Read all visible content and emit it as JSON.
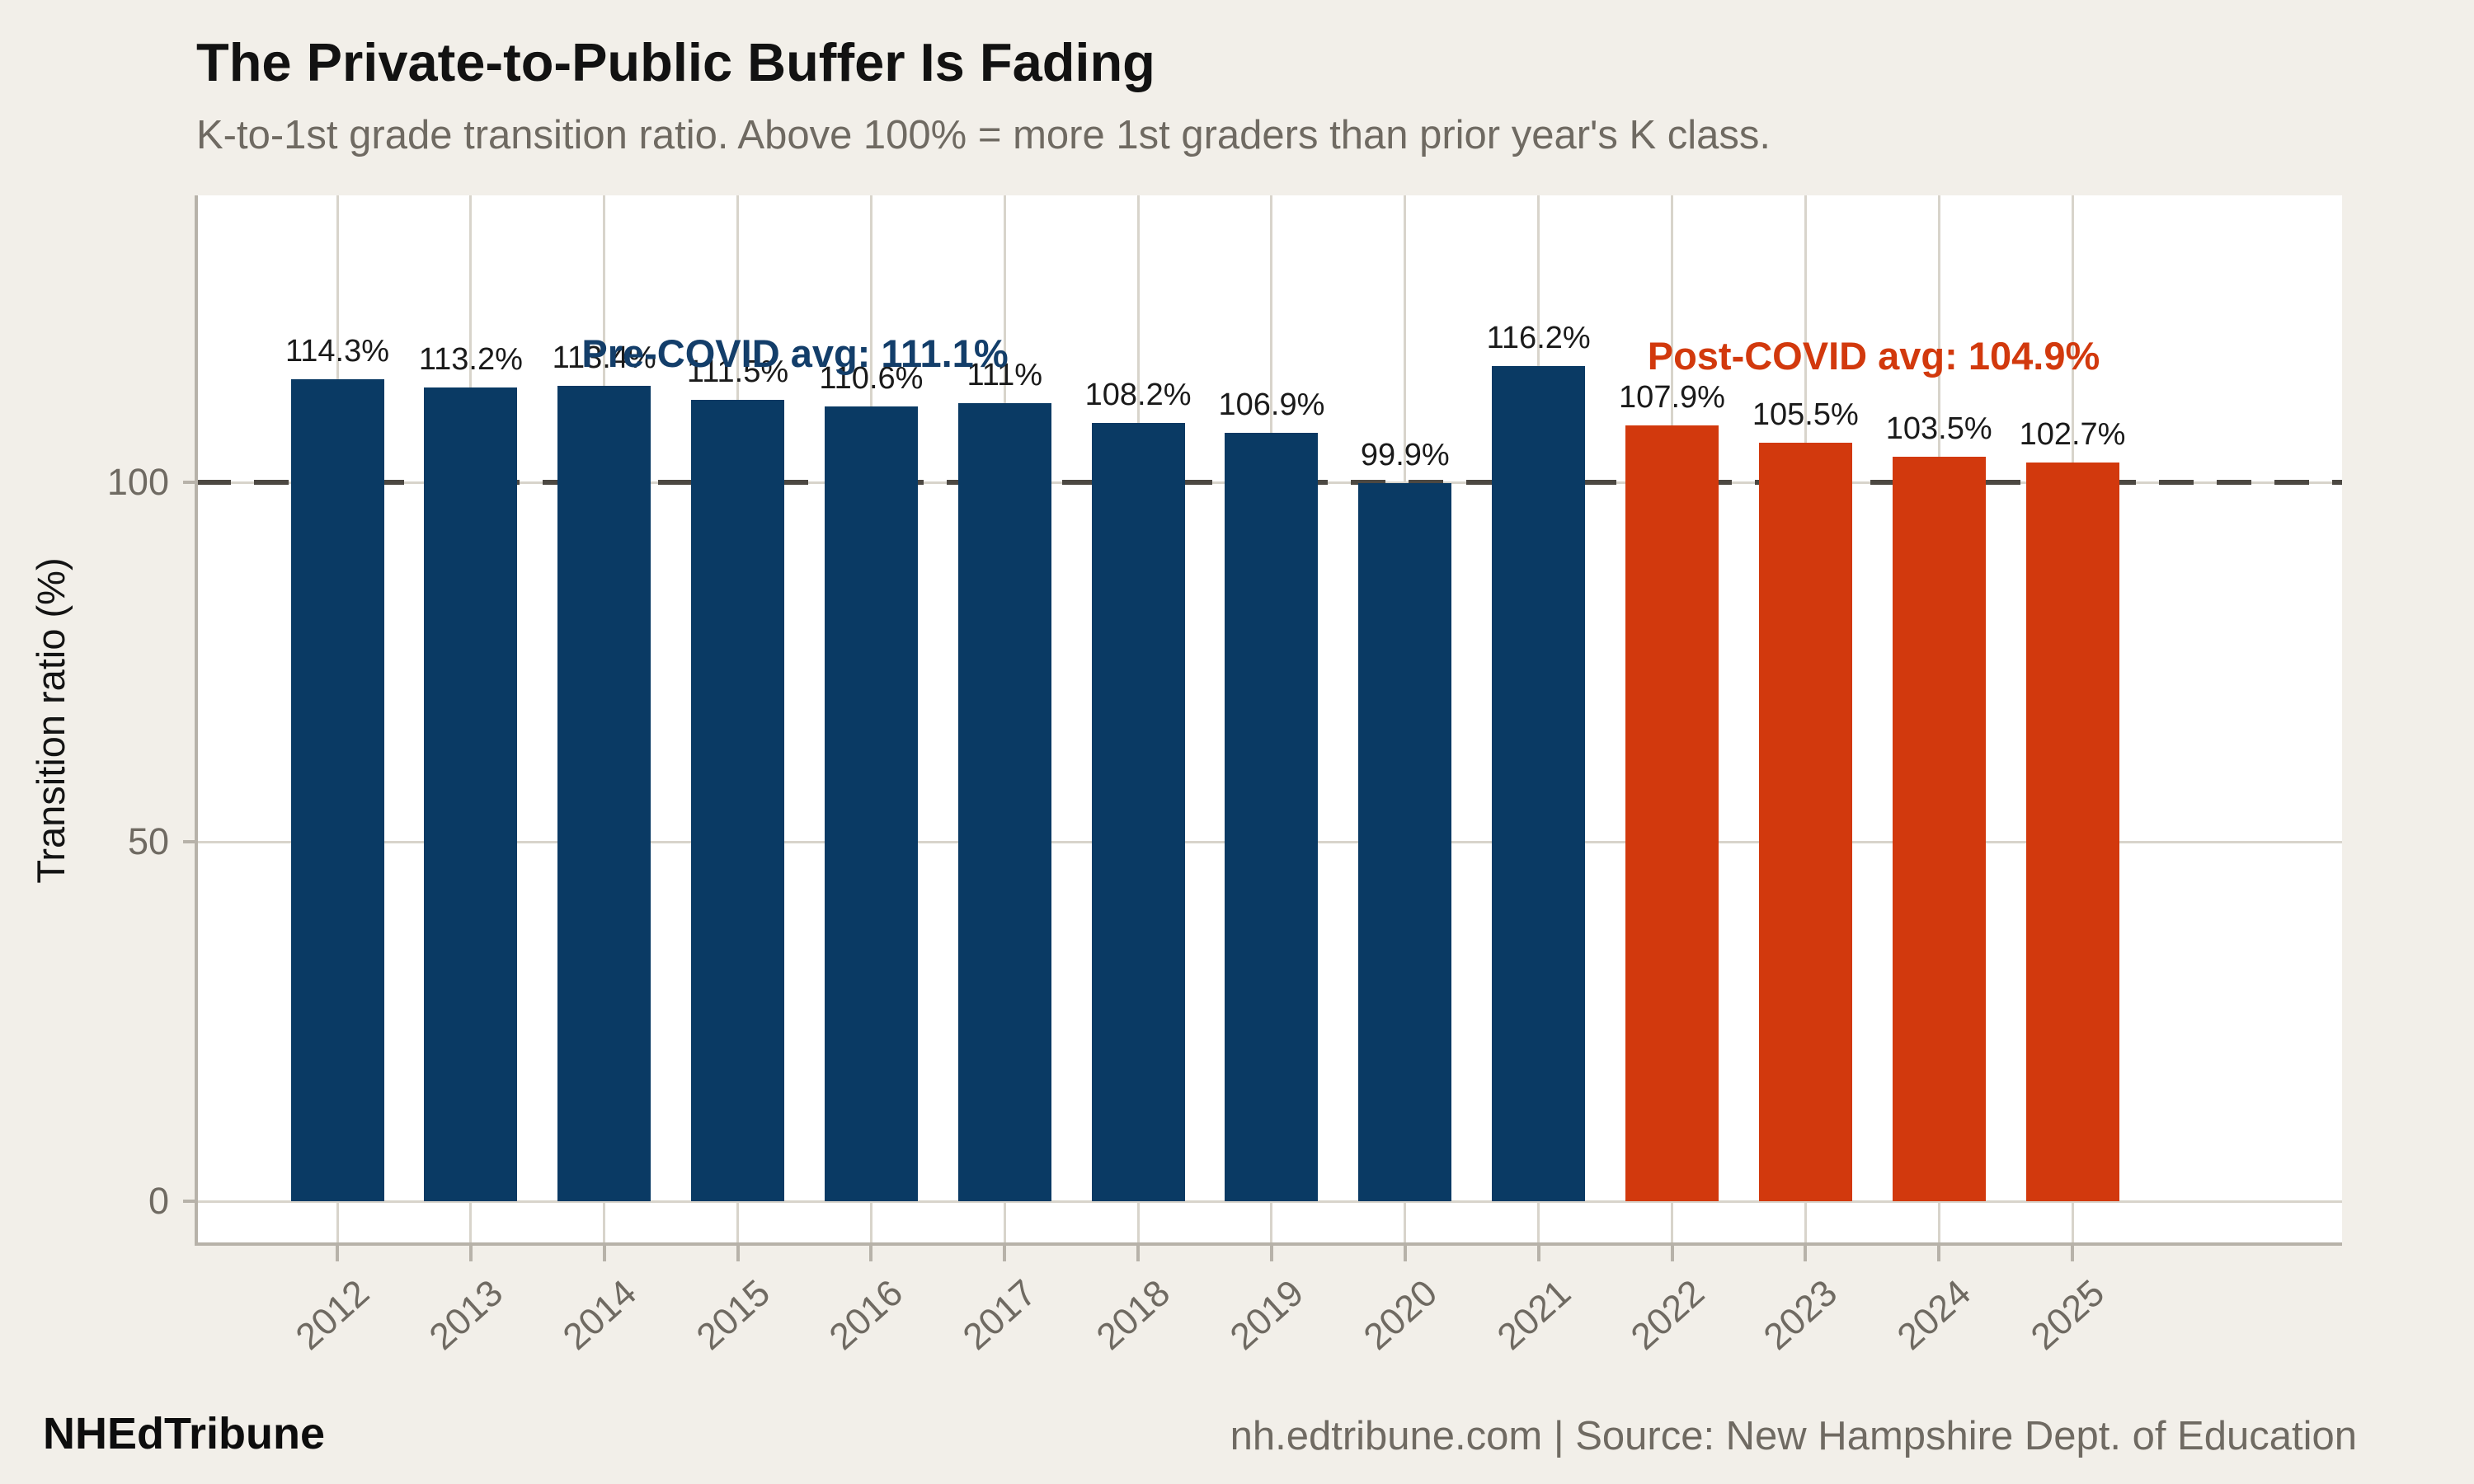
{
  "header": {
    "title": "The Private-to-Public Buffer Is Fading",
    "subtitle": "K-to-1st grade transition ratio. Above 100% = more 1st graders than prior year's K class."
  },
  "footer": {
    "brand": "NHEdTribune",
    "source": "nh.edtribune.com | Source: New Hampshire Dept. of Education"
  },
  "chart_data": {
    "type": "bar",
    "title": "The Private-to-Public Buffer Is Fading",
    "subtitle": "K-to-1st grade transition ratio. Above 100% = more 1st graders than prior year's K class.",
    "categories": [
      "2012",
      "2013",
      "2014",
      "2015",
      "2016",
      "2017",
      "2018",
      "2019",
      "2020",
      "2021",
      "2022",
      "2023",
      "2024",
      "2025"
    ],
    "values": [
      114.3,
      113.2,
      113.4,
      111.5,
      110.6,
      111,
      108.2,
      106.9,
      99.9,
      116.2,
      107.9,
      105.5,
      103.5,
      102.7
    ],
    "bar_labels": [
      "114.3%",
      "113.2%",
      "113.4%",
      "111.5%",
      "110.6%",
      "111%",
      "108.2%",
      "106.9%",
      "99.9%",
      "116.2%",
      "107.9%",
      "105.5%",
      "103.5%",
      "102.7%"
    ],
    "groups": [
      {
        "name": "pre-covid",
        "last_index": 9,
        "color": "#0a3a64"
      },
      {
        "name": "post-covid",
        "last_index": 13,
        "color": "#d2390d"
      }
    ],
    "ylabel": "Transition ratio (%)",
    "xlabel": "",
    "yticks": [
      0,
      50,
      100
    ],
    "ylim": [
      0,
      140
    ],
    "grid": true,
    "legend": "none",
    "reference_line": {
      "y": 100,
      "style": "dashed",
      "color": "#4c4842"
    },
    "annotations": [
      {
        "id": "pre",
        "text": "Pre-COVID avg: 111.1%",
        "color": "#133e6a"
      },
      {
        "id": "post",
        "text": "Post-COVID avg: 104.9%",
        "color": "#d2390d"
      }
    ]
  }
}
